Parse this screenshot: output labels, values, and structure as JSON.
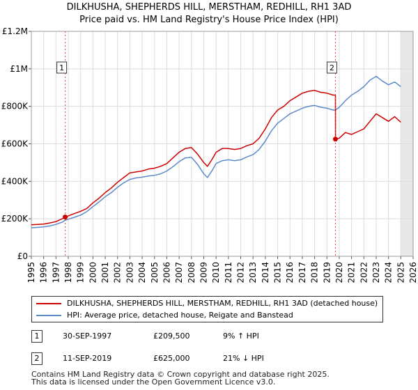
{
  "chart_data": {
    "type": "line",
    "title": "DILKHUSHA, SHEPHERDS HILL, MERSTHAM, REDHILL, RH1 3AD",
    "subtitle": "Price paid vs. HM Land Registry's House Price Index (HPI)",
    "xlabel": "",
    "ylabel": "",
    "xlim": [
      1995,
      2026
    ],
    "ylim": [
      0,
      1200000
    ],
    "x_ticks": [
      "1995",
      "1996",
      "1997",
      "1998",
      "1999",
      "2000",
      "2001",
      "2002",
      "2003",
      "2004",
      "2005",
      "2006",
      "2007",
      "2008",
      "2009",
      "2010",
      "2011",
      "2012",
      "2013",
      "2014",
      "2015",
      "2016",
      "2017",
      "2018",
      "2019",
      "2020",
      "2021",
      "2022",
      "2023",
      "2024",
      "2025",
      "2026"
    ],
    "y_ticks": [
      {
        "value": 0,
        "label": "£0"
      },
      {
        "value": 200000,
        "label": "£200K"
      },
      {
        "value": 400000,
        "label": "£400K"
      },
      {
        "value": 600000,
        "label": "£600K"
      },
      {
        "value": 800000,
        "label": "£800K"
      },
      {
        "value": 1000000,
        "label": "£1M"
      },
      {
        "value": 1200000,
        "label": "£1.2M"
      }
    ],
    "grid": true,
    "future_shading_from": 2025.0,
    "series": [
      {
        "name": "DILKHUSHA, SHEPHERDS HILL, MERSTHAM, REDHILL, RH1 3AD (detached house)",
        "color": "#cc0000",
        "x": [
          1995.0,
          1995.5,
          1996.0,
          1996.5,
          1997.0,
          1997.5,
          1997.75,
          1998.0,
          1998.5,
          1999.0,
          1999.5,
          2000.0,
          2000.5,
          2001.0,
          2001.5,
          2002.0,
          2002.5,
          2003.0,
          2003.5,
          2004.0,
          2004.5,
          2005.0,
          2005.5,
          2006.0,
          2006.5,
          2007.0,
          2007.5,
          2008.0,
          2008.5,
          2009.0,
          2009.3,
          2009.7,
          2010.0,
          2010.5,
          2011.0,
          2011.5,
          2012.0,
          2012.5,
          2013.0,
          2013.5,
          2014.0,
          2014.5,
          2015.0,
          2015.5,
          2016.0,
          2016.5,
          2017.0,
          2017.5,
          2018.0,
          2018.5,
          2019.0,
          2019.5,
          2019.69,
          2019.7,
          2020.0,
          2020.5,
          2021.0,
          2021.5,
          2022.0,
          2022.5,
          2023.0,
          2023.5,
          2024.0,
          2024.5,
          2025.0
        ],
        "values": [
          168000,
          170000,
          172000,
          178000,
          185000,
          200000,
          209500,
          215000,
          228000,
          240000,
          255000,
          285000,
          310000,
          340000,
          365000,
          395000,
          420000,
          445000,
          450000,
          455000,
          465000,
          470000,
          480000,
          495000,
          525000,
          555000,
          575000,
          580000,
          545000,
          500000,
          480000,
          520000,
          555000,
          575000,
          575000,
          570000,
          575000,
          590000,
          600000,
          630000,
          680000,
          740000,
          780000,
          800000,
          830000,
          850000,
          870000,
          880000,
          885000,
          875000,
          870000,
          860000,
          860000,
          625000,
          630000,
          660000,
          650000,
          665000,
          680000,
          720000,
          760000,
          740000,
          720000,
          745000,
          715000
        ]
      },
      {
        "name": "HPI: Average price, detached house, Reigate and Banstead",
        "color": "#5b8bc9",
        "x": [
          1995.0,
          1995.5,
          1996.0,
          1996.5,
          1997.0,
          1997.5,
          1997.75,
          1998.0,
          1998.5,
          1999.0,
          1999.5,
          2000.0,
          2000.5,
          2001.0,
          2001.5,
          2002.0,
          2002.5,
          2003.0,
          2003.5,
          2004.0,
          2004.5,
          2005.0,
          2005.5,
          2006.0,
          2006.5,
          2007.0,
          2007.5,
          2008.0,
          2008.5,
          2009.0,
          2009.3,
          2009.7,
          2010.0,
          2010.5,
          2011.0,
          2011.5,
          2012.0,
          2012.5,
          2013.0,
          2013.5,
          2014.0,
          2014.5,
          2015.0,
          2015.5,
          2016.0,
          2016.5,
          2017.0,
          2017.5,
          2018.0,
          2018.5,
          2019.0,
          2019.5,
          2019.69,
          2020.0,
          2020.5,
          2021.0,
          2021.5,
          2022.0,
          2022.5,
          2023.0,
          2023.5,
          2024.0,
          2024.5,
          2025.0
        ],
        "values": [
          152000,
          154000,
          157000,
          162000,
          170000,
          182000,
          192000,
          198000,
          208000,
          220000,
          238000,
          265000,
          290000,
          318000,
          340000,
          368000,
          392000,
          410000,
          418000,
          422000,
          428000,
          432000,
          440000,
          455000,
          478000,
          505000,
          525000,
          528000,
          490000,
          440000,
          420000,
          460000,
          495000,
          510000,
          515000,
          510000,
          515000,
          530000,
          542000,
          570000,
          615000,
          670000,
          710000,
          735000,
          760000,
          775000,
          790000,
          800000,
          805000,
          795000,
          790000,
          780000,
          780000,
          795000,
          830000,
          860000,
          880000,
          905000,
          940000,
          960000,
          935000,
          915000,
          930000,
          905000
        ]
      }
    ],
    "annotations": [
      {
        "label": "1",
        "x": 1997.75,
        "value": 209500
      },
      {
        "label": "2",
        "x": 2019.69,
        "value": 625000
      }
    ]
  },
  "legend": {
    "property_label": "DILKHUSHA, SHEPHERDS HILL, MERSTHAM, REDHILL, RH1 3AD (detached house)",
    "hpi_label": "HPI: Average price, detached house, Reigate and Banstead"
  },
  "sales": [
    {
      "num": "1",
      "date": "30-SEP-1997",
      "price": "£209,500",
      "hpi": "9% ↑ HPI"
    },
    {
      "num": "2",
      "date": "11-SEP-2019",
      "price": "£625,000",
      "hpi": "21% ↓ HPI"
    }
  ],
  "footer": {
    "line1": "Contains HM Land Registry data © Crown copyright and database right 2025.",
    "line2": "This data is licensed under the Open Government Licence v3.0."
  },
  "colors": {
    "property": "#cc0000",
    "hpi": "#5b8bc9",
    "grid": "#dddddd",
    "future_shade": "#e8e8e8"
  }
}
